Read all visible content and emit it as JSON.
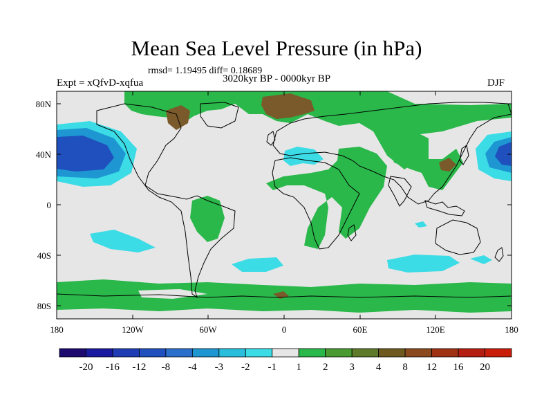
{
  "title": "Mean Sea Level Pressure (in hPa)",
  "stats": "rmsd= 1.19495 diff= 0.18689",
  "experiment": "Expt = xQfvD-xqfua",
  "period": "3020kyr BP - 0000kyr BP",
  "season": "DJF",
  "axes": {
    "y_ticks": [
      "80N",
      "40N",
      "0",
      "40S",
      "80S"
    ],
    "x_ticks": [
      "180",
      "120W",
      "60W",
      "0",
      "60E",
      "120E",
      "180"
    ]
  },
  "colorbar": {
    "labels": [
      "-20",
      "-16",
      "-12",
      "-8",
      "-4",
      "-3",
      "-2",
      "-1",
      "1",
      "2",
      "3",
      "4",
      "8",
      "12",
      "16",
      "20"
    ],
    "colors": [
      "#1c0a6e",
      "#1a1aa0",
      "#1f3cb4",
      "#1f50be",
      "#2a6fcc",
      "#1e96d2",
      "#28bedc",
      "#3cdce6",
      "#e6e6e6",
      "#2ab84a",
      "#4a9a32",
      "#5f7a28",
      "#6e5a1e",
      "#8a4a1e",
      "#a03214",
      "#b41e10",
      "#c81e0a"
    ]
  },
  "colors": {
    "background": "#e6e6e6",
    "green": "#2ab84a",
    "brown": "#7a5a2a",
    "cyan": "#3cdce6",
    "blue": "#1f50be"
  }
}
